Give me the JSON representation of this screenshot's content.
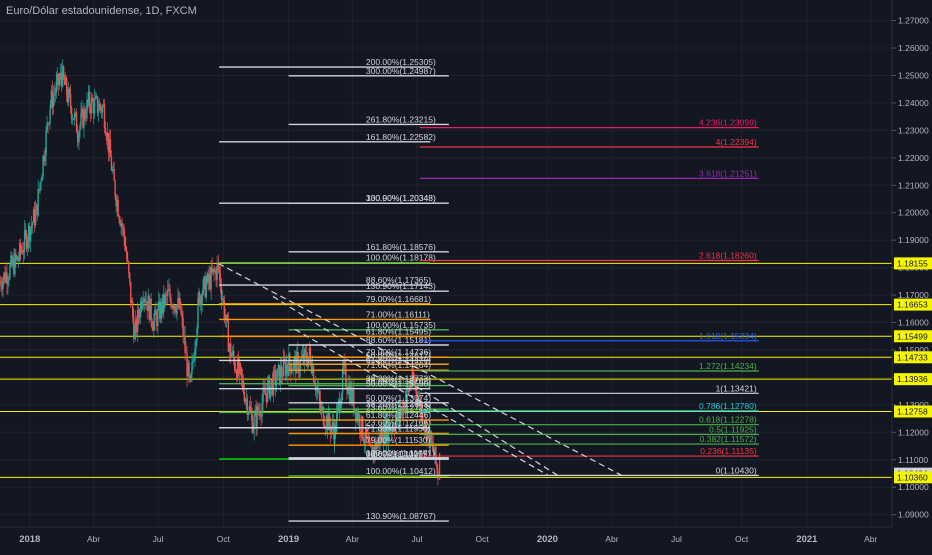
{
  "chart_data": {
    "type": "line",
    "title": "Euro/Dólar estadounidense, 1D, FXCM",
    "colors": {
      "background": "#131722",
      "axis_text": "#b2b5be",
      "candle_up": "#26a69a",
      "candle_down": "#ef5350",
      "yellow": "#f5f500",
      "white": "#d1d4dc",
      "orange": "#ff9800",
      "green": "#4caf50",
      "bright_green": "#00e600",
      "red": "#f23645",
      "blue": "#2962ff",
      "purple": "#9c27b0",
      "magenta": "#e91e63",
      "teal": "#26c6da"
    },
    "x_axis": {
      "start": "2017-11-20",
      "end": "2021-05-01",
      "ticks": [
        {
          "date": "2018-01-01",
          "label": "2018",
          "bold": true
        },
        {
          "date": "2018-04-01",
          "label": "Abr"
        },
        {
          "date": "2018-07-01",
          "label": "Jul"
        },
        {
          "date": "2018-10-01",
          "label": "Oct"
        },
        {
          "date": "2019-01-01",
          "label": "2019",
          "bold": true
        },
        {
          "date": "2019-04-01",
          "label": "Abr"
        },
        {
          "date": "2019-07-01",
          "label": "Jul"
        },
        {
          "date": "2019-10-01",
          "label": "Oct"
        },
        {
          "date": "2020-01-01",
          "label": "2020",
          "bold": true
        },
        {
          "date": "2020-04-01",
          "label": "Abr"
        },
        {
          "date": "2020-07-01",
          "label": "Jul"
        },
        {
          "date": "2020-10-01",
          "label": "Oct"
        },
        {
          "date": "2021-01-01",
          "label": "2021",
          "bold": true
        },
        {
          "date": "2021-04-01",
          "label": "Abr"
        }
      ]
    },
    "y_axis": {
      "min": 1.0855,
      "max": 1.2775,
      "ticks": [
        "1.27000",
        "1.26000",
        "1.25000",
        "1.24000",
        "1.23000",
        "1.22000",
        "1.21000",
        "1.20000",
        "1.19000",
        "1.18000",
        "1.17000",
        "1.16000",
        "1.15000",
        "1.14000",
        "1.13000",
        "1.12000",
        "1.11000",
        "1.10000",
        "1.09000"
      ]
    },
    "price_tags": [
      {
        "value": 1.18155,
        "label": "1.18155",
        "color": "yellow"
      },
      {
        "value": 1.16653,
        "label": "1.16653",
        "color": "yellow"
      },
      {
        "value": 1.15499,
        "label": "1.15499",
        "color": "yellow"
      },
      {
        "value": 1.14733,
        "label": "1.14733",
        "color": "yellow"
      },
      {
        "value": 1.13936,
        "label": "1.13936",
        "color": "yellow"
      },
      {
        "value": 1.12758,
        "label": "1.12758",
        "color": "yellow"
      },
      {
        "value": 1.10494,
        "label": "1.10494",
        "color": "white"
      },
      {
        "value": 1.1036,
        "label": "1.10360",
        "color": "yellow"
      }
    ],
    "horizontal_rays": [
      {
        "start": "2017-11-20",
        "y": 1.18155,
        "color": "yellow"
      },
      {
        "start": "2017-11-20",
        "y": 1.16653,
        "color": "yellow"
      },
      {
        "start": "2017-11-20",
        "y": 1.15499,
        "color": "yellow"
      },
      {
        "start": "2017-11-20",
        "y": 1.14733,
        "color": "yellow"
      },
      {
        "start": "2017-11-20",
        "y": 1.13936,
        "color": "yellow"
      },
      {
        "start": "2017-11-20",
        "y": 1.12758,
        "color": "yellow"
      },
      {
        "start": "2017-11-20",
        "y": 1.1036,
        "color": "yellow"
      }
    ],
    "fib_levels": [
      {
        "start": "2018-09-25",
        "end": "2019-07-20",
        "y": 1.25305,
        "label": "200.00%(1.25305)",
        "color": "white"
      },
      {
        "start": "2019-01-01",
        "end": "2019-08-15",
        "y": 1.24987,
        "label": "300.00%(1.24987)",
        "color": "white"
      },
      {
        "start": "2019-01-01",
        "end": "2019-08-15",
        "y": 1.23215,
        "label": "261.80%(1.23215)",
        "color": "white"
      },
      {
        "start": "2018-09-25",
        "end": "2019-07-20",
        "y": 1.22582,
        "label": "161.80%(1.22582)",
        "color": "white"
      },
      {
        "start": "2019-01-01",
        "end": "2019-08-15",
        "y": 1.20348,
        "label": "300.00%(1.20348)",
        "color": "white"
      },
      {
        "start": "2018-09-25",
        "end": "2019-07-20",
        "y": 1.20348,
        "label": "130.90%(1.20348)",
        "color": "white"
      },
      {
        "start": "2019-01-01",
        "end": "2019-08-15",
        "y": 1.18576,
        "label": "161.80%(1.18576)",
        "color": "white"
      },
      {
        "start": "2018-09-25",
        "end": "2019-07-20",
        "y": 1.18178,
        "label": "100.00%(1.18178)",
        "color": "green"
      },
      {
        "start": "2018-09-25",
        "end": "2019-07-20",
        "y": 1.17365,
        "label": "88.60%(1.17365)",
        "color": "white"
      },
      {
        "start": "2019-01-01",
        "end": "2019-08-15",
        "y": 1.17143,
        "label": "130.90%(1.17143)",
        "color": "white"
      },
      {
        "start": "2018-09-25",
        "end": "2019-07-20",
        "y": 1.16681,
        "label": "79.00%(1.16681)",
        "color": "orange"
      },
      {
        "start": "2018-09-25",
        "end": "2019-07-20",
        "y": 1.16111,
        "label": "71.00%(1.16111)",
        "color": "orange"
      },
      {
        "start": "2019-01-01",
        "end": "2019-08-15",
        "y": 1.15735,
        "label": "100.00%(1.15735)",
        "color": "green"
      },
      {
        "start": "2018-09-25",
        "end": "2019-07-20",
        "y": 1.15495,
        "label": "61.80%(1.15495)",
        "color": "orange"
      },
      {
        "start": "2019-01-01",
        "end": "2019-08-15",
        "y": 1.15181,
        "label": "88.60%(1.15181)",
        "color": "white"
      },
      {
        "start": "2019-01-01",
        "end": "2019-08-15",
        "y": 1.14736,
        "label": "79.00%(1.14736)",
        "color": "orange"
      },
      {
        "start": "2018-09-25",
        "end": "2019-07-20",
        "y": 1.14617,
        "label": "50.00%(1.14617)",
        "color": "white"
      },
      {
        "start": "2019-01-01",
        "end": "2019-08-15",
        "y": 1.14479,
        "label": "61.80%(1.14479)",
        "color": "orange"
      },
      {
        "start": "2019-01-01",
        "end": "2019-08-15",
        "y": 1.14264,
        "label": "71.00%(1.14264)",
        "color": "orange"
      },
      {
        "start": "2018-09-25",
        "end": "2019-07-20",
        "y": 1.13773,
        "label": "38.20%(1.13773)",
        "color": "green"
      },
      {
        "start": "2019-01-01",
        "end": "2019-08-15",
        "y": 1.13702,
        "label": "38.20%(1.13702)",
        "color": "green"
      },
      {
        "start": "2018-09-25",
        "end": "2019-07-20",
        "y": 1.1359,
        "label": "50.00%(1.13590)",
        "color": "white"
      },
      {
        "start": "2019-01-01",
        "end": "2019-08-15",
        "y": 1.13074,
        "label": "50.00%(1.13074)",
        "color": "white"
      },
      {
        "start": "2019-01-01",
        "end": "2019-08-15",
        "y": 1.12843,
        "label": "38.20%(1.12843)",
        "color": "green"
      },
      {
        "start": "2018-09-25",
        "end": "2019-07-20",
        "y": 1.12723,
        "label": "23.60%(1.12723)",
        "color": "green"
      },
      {
        "start": "2019-01-01",
        "end": "2019-08-15",
        "y": 1.12446,
        "label": "61.80%(1.12446)",
        "color": "orange"
      },
      {
        "start": "2018-09-25",
        "end": "2019-07-20",
        "y": 1.12166,
        "label": "23.60%(1.12166)",
        "color": "white"
      },
      {
        "start": "2019-01-01",
        "end": "2019-08-15",
        "y": 1.11956,
        "label": "71.00%(1.11956)",
        "color": "orange"
      },
      {
        "start": "2019-01-01",
        "end": "2019-08-15",
        "y": 1.1153,
        "label": "79.00%(1.11530)",
        "color": "orange"
      },
      {
        "start": "2018-09-25",
        "end": "2019-07-20",
        "y": 1.11026,
        "label": "0.00%(1.11026)",
        "color": "bright_green"
      },
      {
        "start": "2019-01-01",
        "end": "2019-08-15",
        "y": 1.11071,
        "label": "100.00%(1.11071)",
        "color": "white"
      },
      {
        "start": "2019-01-01",
        "end": "2019-08-15",
        "y": 1.11019,
        "label": "88.60%(1.11019)",
        "color": "white"
      },
      {
        "start": "2019-01-01",
        "end": "2019-08-15",
        "y": 1.10412,
        "label": "100.00%(1.10412)",
        "color": "green"
      },
      {
        "start": "2019-01-01",
        "end": "2019-08-15",
        "y": 1.08767,
        "label": "130.90%(1.08767)",
        "color": "white"
      }
    ],
    "right_fib": [
      {
        "start": "2019-07-05",
        "end": "2020-10-25",
        "y": 1.23099,
        "label": "4.236(1.23099)",
        "color": "magenta"
      },
      {
        "start": "2019-07-05",
        "end": "2020-10-25",
        "y": 1.22394,
        "label": "4(1.22394)",
        "color": "red"
      },
      {
        "start": "2019-07-05",
        "end": "2020-10-25",
        "y": 1.21251,
        "label": "3.618(1.21251)",
        "color": "purple"
      },
      {
        "start": "2019-07-05",
        "end": "2020-10-25",
        "y": 1.1826,
        "label": "2.618(1.18260)",
        "color": "red"
      },
      {
        "start": "2019-07-05",
        "end": "2020-10-25",
        "y": 1.15334,
        "label": "1.618(1.15334)",
        "color": "blue"
      },
      {
        "start": "2019-07-05",
        "end": "2020-10-25",
        "y": 1.14234,
        "label": "1.272(1.14234)",
        "color": "green"
      },
      {
        "start": "2019-07-05",
        "end": "2020-10-25",
        "y": 1.13421,
        "label": "1(1.13421)",
        "color": "white"
      },
      {
        "start": "2019-07-05",
        "end": "2020-10-25",
        "y": 1.1278,
        "label": "0.786(1.12780)",
        "color": "teal"
      },
      {
        "start": "2019-07-05",
        "end": "2020-10-25",
        "y": 1.12278,
        "label": "0.618(1.12278)",
        "color": "green"
      },
      {
        "start": "2019-07-05",
        "end": "2020-10-25",
        "y": 1.11925,
        "label": "0.5(1.11925)",
        "color": "green"
      },
      {
        "start": "2019-07-05",
        "end": "2020-10-25",
        "y": 1.11572,
        "label": "0.382(1.11572)",
        "color": "green"
      },
      {
        "start": "2019-07-05",
        "end": "2020-10-25",
        "y": 1.11135,
        "label": "0.236(1.11135)",
        "color": "red"
      },
      {
        "start": "2019-07-05",
        "end": "2020-10-25",
        "y": 1.1043,
        "label": "0(1.10430)",
        "color": "white"
      }
    ],
    "trend_lines": [
      {
        "x1": "2018-09-24",
        "y1": 1.1815,
        "x2": "2020-04-20",
        "y2": 1.1036
      },
      {
        "x1": "2018-12-10",
        "y1": 1.1695,
        "x2": "2020-01-20",
        "y2": 1.1036
      },
      {
        "x1": "2019-01-10",
        "y1": 1.1575,
        "x2": "2020-01-01",
        "y2": 1.1045
      }
    ],
    "candle_anchors": [
      [
        "2017-11-20",
        1.175
      ],
      [
        "2017-12-15",
        1.183
      ],
      [
        "2018-01-10",
        1.2
      ],
      [
        "2018-01-30",
        1.24
      ],
      [
        "2018-02-15",
        1.25
      ],
      [
        "2018-03-10",
        1.23
      ],
      [
        "2018-03-25",
        1.24
      ],
      [
        "2018-04-15",
        1.238
      ],
      [
        "2018-04-30",
        1.21
      ],
      [
        "2018-05-15",
        1.19
      ],
      [
        "2018-05-29",
        1.155
      ],
      [
        "2018-06-10",
        1.172
      ],
      [
        "2018-06-25",
        1.16
      ],
      [
        "2018-07-15",
        1.17
      ],
      [
        "2018-08-01",
        1.165
      ],
      [
        "2018-08-15",
        1.135
      ],
      [
        "2018-08-28",
        1.17
      ],
      [
        "2018-09-24",
        1.18
      ],
      [
        "2018-10-10",
        1.15
      ],
      [
        "2018-10-25",
        1.14
      ],
      [
        "2018-11-12",
        1.123
      ],
      [
        "2018-12-01",
        1.135
      ],
      [
        "2018-12-31",
        1.145
      ],
      [
        "2019-01-15",
        1.145
      ],
      [
        "2019-02-01",
        1.148
      ],
      [
        "2019-02-15",
        1.128
      ],
      [
        "2019-03-07",
        1.12
      ],
      [
        "2019-03-20",
        1.142
      ],
      [
        "2019-04-10",
        1.125
      ],
      [
        "2019-04-26",
        1.112
      ],
      [
        "2019-05-15",
        1.12
      ],
      [
        "2019-06-05",
        1.125
      ],
      [
        "2019-06-25",
        1.14
      ],
      [
        "2019-07-10",
        1.125
      ],
      [
        "2019-07-25",
        1.112
      ],
      [
        "2019-08-01",
        1.103
      ]
    ]
  }
}
